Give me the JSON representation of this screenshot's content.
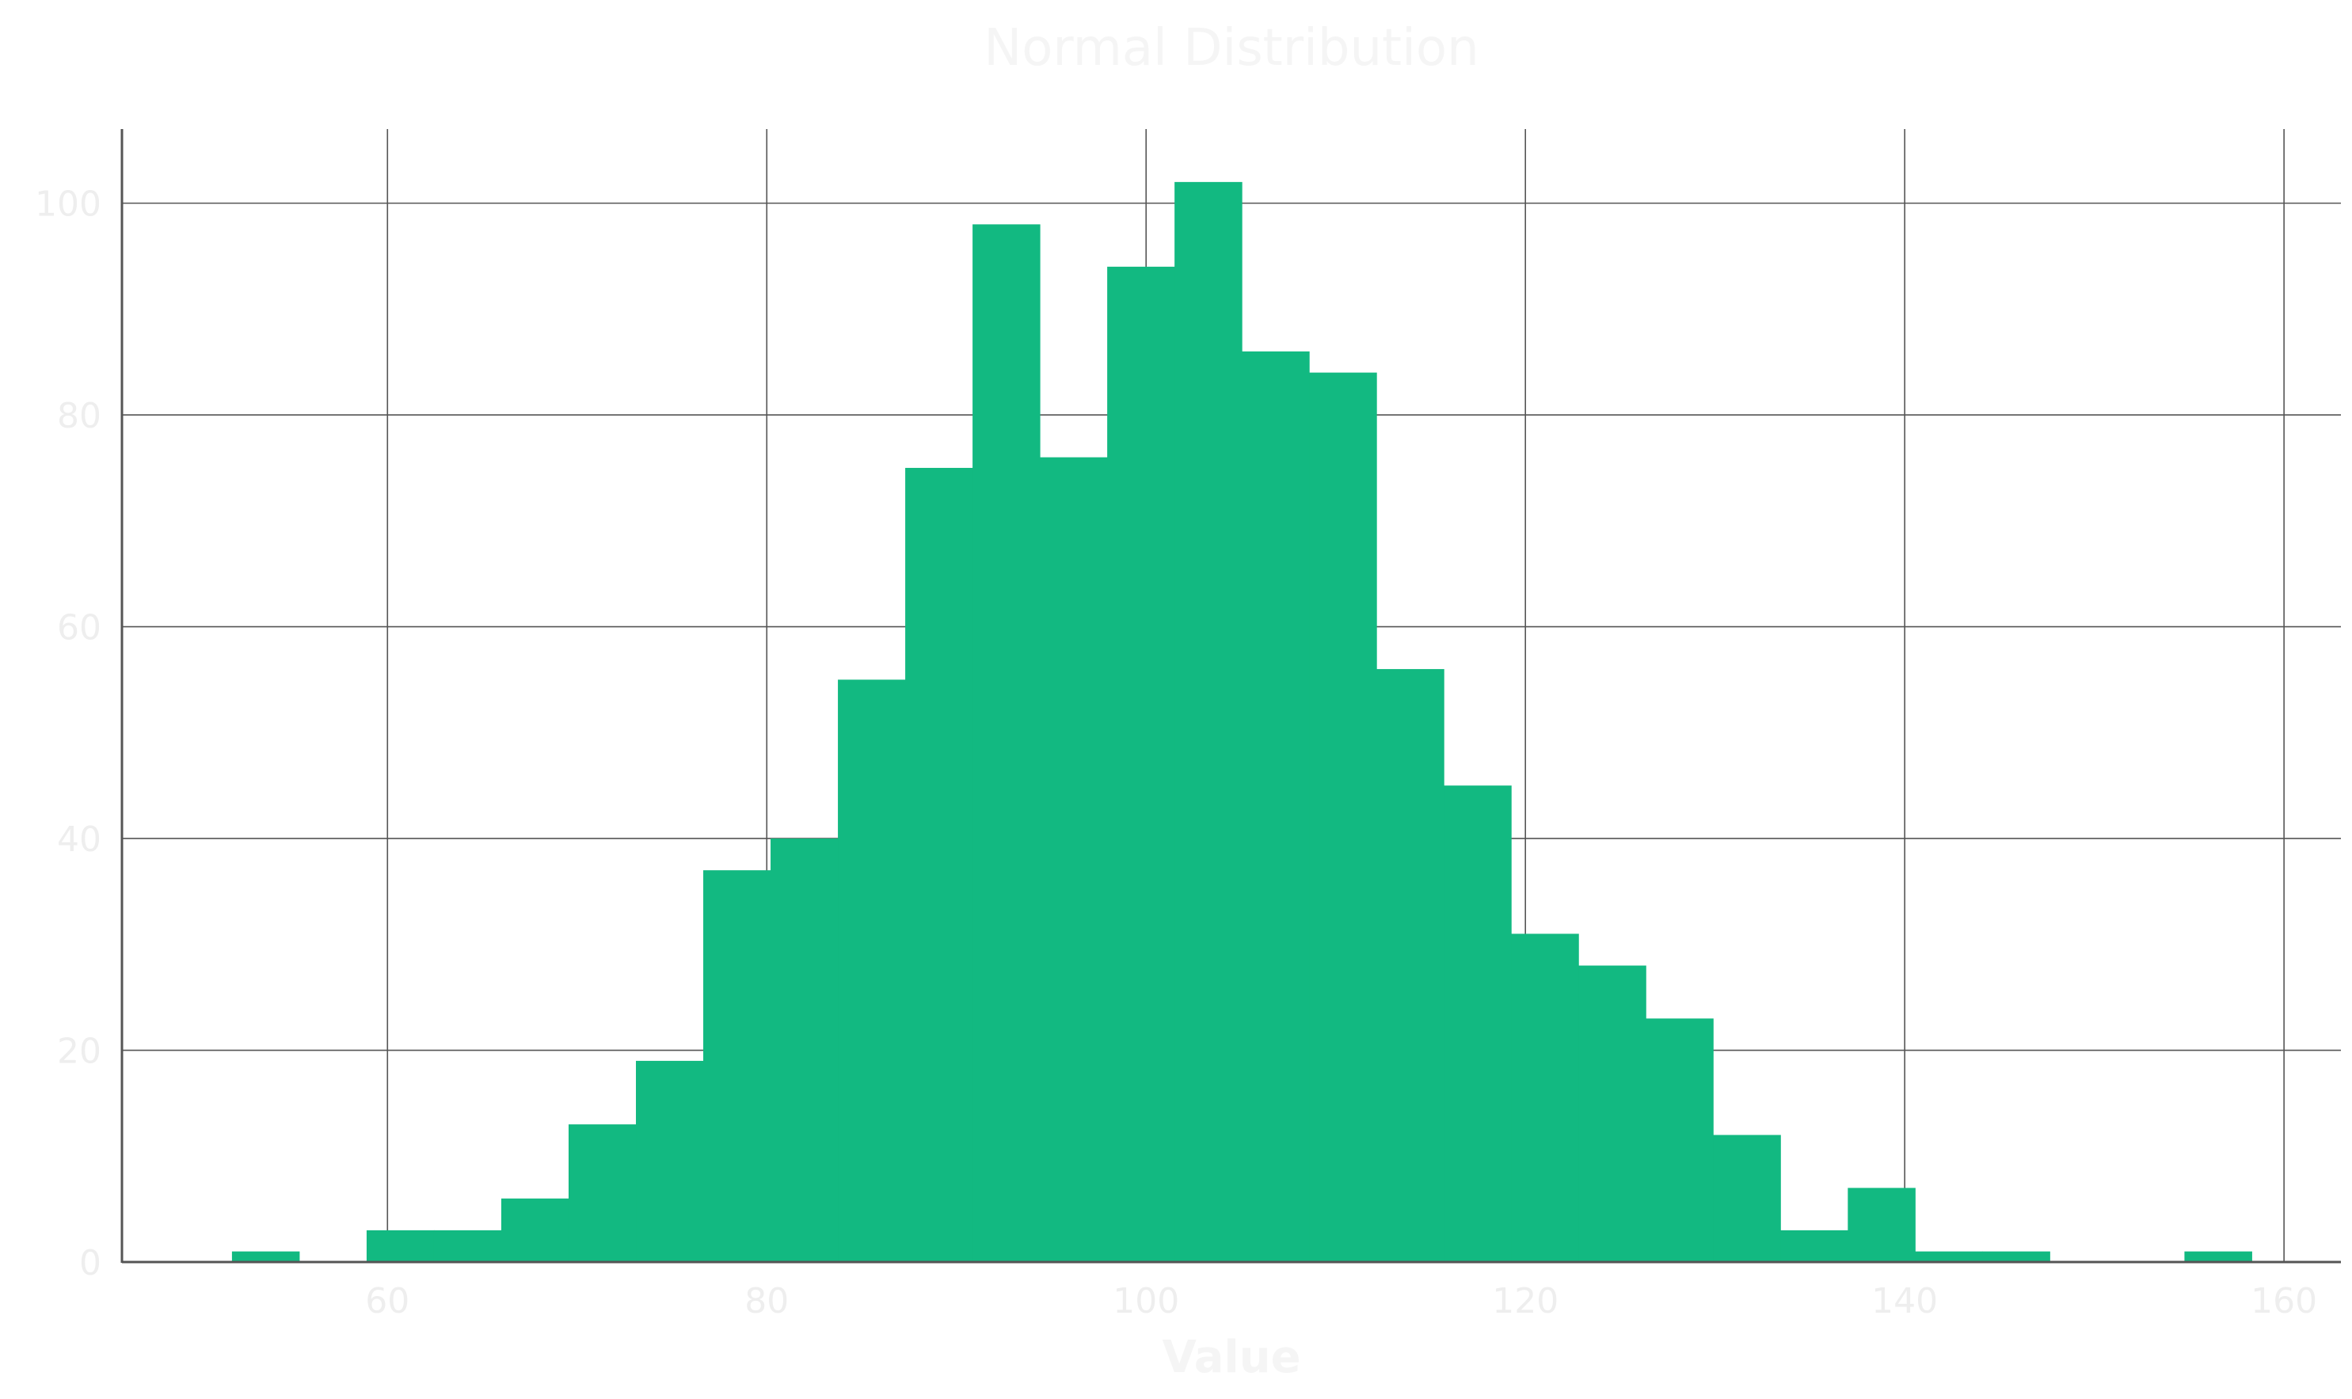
{
  "chart_data": {
    "type": "bar",
    "title": "Normal Distribution",
    "xlabel": "Value",
    "ylabel": "",
    "xlim": [
      46,
      163
    ],
    "ylim": [
      0,
      107
    ],
    "x_ticks": [
      60,
      80,
      100,
      120,
      140,
      160
    ],
    "y_ticks": [
      0,
      20,
      40,
      60,
      80,
      100
    ],
    "grid": true,
    "bar_color": "#12b981",
    "bins": [
      {
        "start": 51.8,
        "end": 55.35,
        "count": 1
      },
      {
        "start": 55.35,
        "end": 58.9,
        "count": 0
      },
      {
        "start": 58.9,
        "end": 62.45,
        "count": 3
      },
      {
        "start": 62.45,
        "end": 66.0,
        "count": 3
      },
      {
        "start": 66.0,
        "end": 69.55,
        "count": 6
      },
      {
        "start": 69.55,
        "end": 73.1,
        "count": 13
      },
      {
        "start": 73.1,
        "end": 76.65,
        "count": 19
      },
      {
        "start": 76.65,
        "end": 80.2,
        "count": 37
      },
      {
        "start": 80.2,
        "end": 83.75,
        "count": 40
      },
      {
        "start": 83.75,
        "end": 87.3,
        "count": 55
      },
      {
        "start": 87.3,
        "end": 90.85,
        "count": 75
      },
      {
        "start": 90.85,
        "end": 94.4,
        "count": 98
      },
      {
        "start": 94.4,
        "end": 97.95,
        "count": 76
      },
      {
        "start": 97.95,
        "end": 101.5,
        "count": 94
      },
      {
        "start": 101.5,
        "end": 105.05,
        "count": 102
      },
      {
        "start": 105.05,
        "end": 108.6,
        "count": 86
      },
      {
        "start": 108.6,
        "end": 112.15,
        "count": 84
      },
      {
        "start": 112.15,
        "end": 115.7,
        "count": 56
      },
      {
        "start": 115.7,
        "end": 119.25,
        "count": 45
      },
      {
        "start": 119.25,
        "end": 122.8,
        "count": 31
      },
      {
        "start": 122.8,
        "end": 126.35,
        "count": 28
      },
      {
        "start": 126.35,
        "end": 129.9,
        "count": 23
      },
      {
        "start": 129.9,
        "end": 133.45,
        "count": 12
      },
      {
        "start": 133.45,
        "end": 137.0,
        "count": 3
      },
      {
        "start": 137.0,
        "end": 140.55,
        "count": 7
      },
      {
        "start": 140.55,
        "end": 144.1,
        "count": 1
      },
      {
        "start": 144.1,
        "end": 147.65,
        "count": 1
      },
      {
        "start": 147.65,
        "end": 151.2,
        "count": 0
      },
      {
        "start": 151.2,
        "end": 154.75,
        "count": 0
      },
      {
        "start": 154.75,
        "end": 158.3,
        "count": 1
      }
    ]
  }
}
